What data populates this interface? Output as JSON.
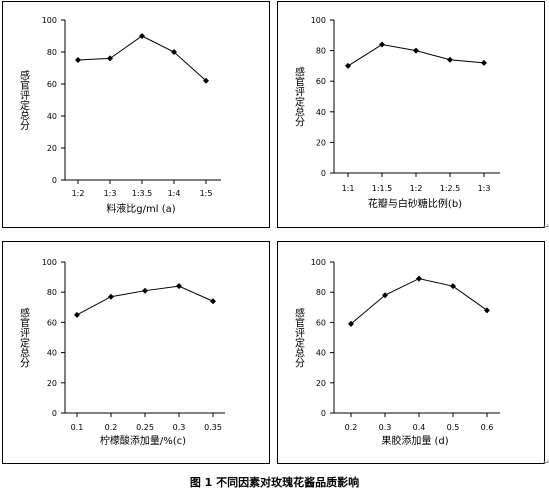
{
  "chart_data": [
    {
      "type": "line",
      "panel": "a",
      "x_tick_labels": [
        "1:2",
        "1:3",
        "1:3.5",
        "1:4",
        "1:5"
      ],
      "series": [
        {
          "values": [
            75,
            76,
            90,
            80,
            62
          ]
        }
      ],
      "xlabel": "料液比g/ml (a)",
      "ylabel": "感官评定总分",
      "ylim": [
        0,
        100
      ],
      "y_ticks": [
        0,
        20,
        40,
        60,
        80,
        100
      ],
      "grid": false,
      "marker": "diamond",
      "color": "#000000"
    },
    {
      "type": "line",
      "panel": "b",
      "x_tick_labels": [
        "1:1",
        "1:1.5",
        "1:2",
        "1:2.5",
        "1:3"
      ],
      "series": [
        {
          "values": [
            70,
            84,
            80,
            74,
            72
          ]
        }
      ],
      "xlabel": "花瓣与白砂糖比例(b)",
      "ylabel": "感官评定总分",
      "ylim": [
        0,
        100
      ],
      "y_ticks": [
        0,
        20,
        40,
        60,
        80,
        100
      ],
      "grid": false,
      "marker": "diamond",
      "color": "#000000"
    },
    {
      "type": "line",
      "panel": "c",
      "x_tick_labels": [
        "0.1",
        "0.2",
        "0.25",
        "0.3",
        "0.35"
      ],
      "series": [
        {
          "values": [
            65,
            77,
            81,
            84,
            74
          ]
        }
      ],
      "xlabel": "柠檬酸添加量/%(c)",
      "ylabel": "感官评定总分",
      "ylim": [
        0,
        100
      ],
      "y_ticks": [
        0,
        20,
        40,
        60,
        80,
        100
      ],
      "grid": false,
      "marker": "diamond",
      "color": "#000000"
    },
    {
      "type": "line",
      "panel": "d",
      "x_tick_labels": [
        "0.2",
        "0.3",
        "0.4",
        "0.5",
        "0.6"
      ],
      "series": [
        {
          "values": [
            59,
            78,
            89,
            84,
            68
          ]
        }
      ],
      "xlabel": "果胶添加量 (d)",
      "ylabel": "感官评定总分",
      "ylim": [
        0,
        100
      ],
      "y_ticks": [
        0,
        20,
        40,
        60,
        80,
        100
      ],
      "grid": false,
      "marker": "diamond",
      "color": "#000000"
    }
  ],
  "caption": "图 1 不同因素对玫瑰花酱品质影响"
}
